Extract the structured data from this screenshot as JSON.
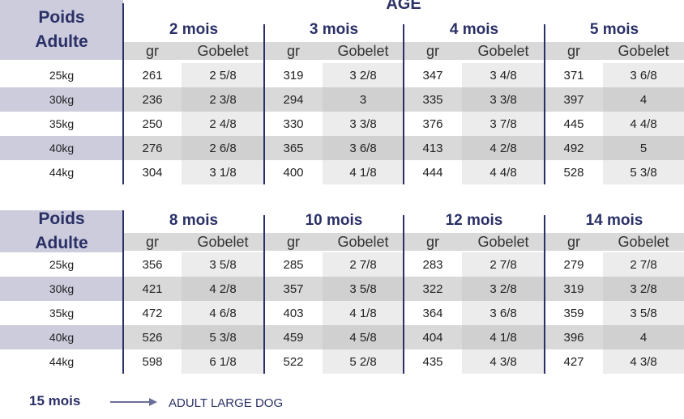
{
  "header": {
    "line1": "Poids",
    "line2": "Adulte",
    "age": "ÂGE"
  },
  "col_labels": {
    "gr": "gr",
    "gobelet": "Gobelet"
  },
  "table1": {
    "months": [
      "2 mois",
      "3 mois",
      "4 mois",
      "5 mois"
    ],
    "rows": [
      {
        "weight": "25kg",
        "cells": [
          [
            "261",
            "2 5/8"
          ],
          [
            "319",
            "3 2/8"
          ],
          [
            "347",
            "3 4/8"
          ],
          [
            "371",
            "3 6/8"
          ]
        ]
      },
      {
        "weight": "30kg",
        "cells": [
          [
            "236",
            "2 3/8"
          ],
          [
            "294",
            "3"
          ],
          [
            "335",
            "3 3/8"
          ],
          [
            "397",
            "4"
          ]
        ]
      },
      {
        "weight": "35kg",
        "cells": [
          [
            "250",
            "2 4/8"
          ],
          [
            "330",
            "3 3/8"
          ],
          [
            "376",
            "3 7/8"
          ],
          [
            "445",
            "4 4/8"
          ]
        ]
      },
      {
        "weight": "40kg",
        "cells": [
          [
            "276",
            "2 6/8"
          ],
          [
            "365",
            "3 6/8"
          ],
          [
            "413",
            "4 2/8"
          ],
          [
            "492",
            "5"
          ]
        ]
      },
      {
        "weight": "44kg",
        "cells": [
          [
            "304",
            "3 1/8"
          ],
          [
            "400",
            "4 1/8"
          ],
          [
            "444",
            "4 4/8"
          ],
          [
            "528",
            "5 3/8"
          ]
        ]
      }
    ]
  },
  "table2": {
    "months": [
      "8 mois",
      "10 mois",
      "12 mois",
      "14 mois"
    ],
    "rows": [
      {
        "weight": "25kg",
        "cells": [
          [
            "356",
            "3 5/8"
          ],
          [
            "285",
            "2 7/8"
          ],
          [
            "283",
            "2 7/8"
          ],
          [
            "279",
            "2 7/8"
          ]
        ]
      },
      {
        "weight": "30kg",
        "cells": [
          [
            "421",
            "4 2/8"
          ],
          [
            "357",
            "3 5/8"
          ],
          [
            "322",
            "3 2/8"
          ],
          [
            "319",
            "3 2/8"
          ]
        ]
      },
      {
        "weight": "35kg",
        "cells": [
          [
            "472",
            "4 6/8"
          ],
          [
            "403",
            "4 1/8"
          ],
          [
            "364",
            "3 6/8"
          ],
          [
            "359",
            "3 5/8"
          ]
        ]
      },
      {
        "weight": "40kg",
        "cells": [
          [
            "526",
            "5 3/8"
          ],
          [
            "459",
            "4 5/8"
          ],
          [
            "404",
            "4 1/8"
          ],
          [
            "396",
            "4"
          ]
        ]
      },
      {
        "weight": "44kg",
        "cells": [
          [
            "598",
            "6 1/8"
          ],
          [
            "522",
            "5 2/8"
          ],
          [
            "435",
            "4 3/8"
          ],
          [
            "427",
            "4 3/8"
          ]
        ]
      }
    ]
  },
  "footer": {
    "age": "15 mois",
    "text": "ADULT LARGE DOG"
  }
}
